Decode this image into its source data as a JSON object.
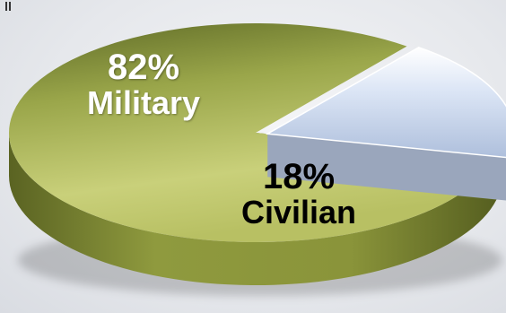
{
  "chart_data": {
    "type": "pie",
    "categories": [
      "Military",
      "Civilian"
    ],
    "values": [
      82,
      18
    ],
    "labels": [
      "82%",
      "18%"
    ],
    "colors": [
      "#9aa64a",
      "#b9c9e6"
    ],
    "style": "3d",
    "exploded": "Civilian",
    "title": ""
  }
}
